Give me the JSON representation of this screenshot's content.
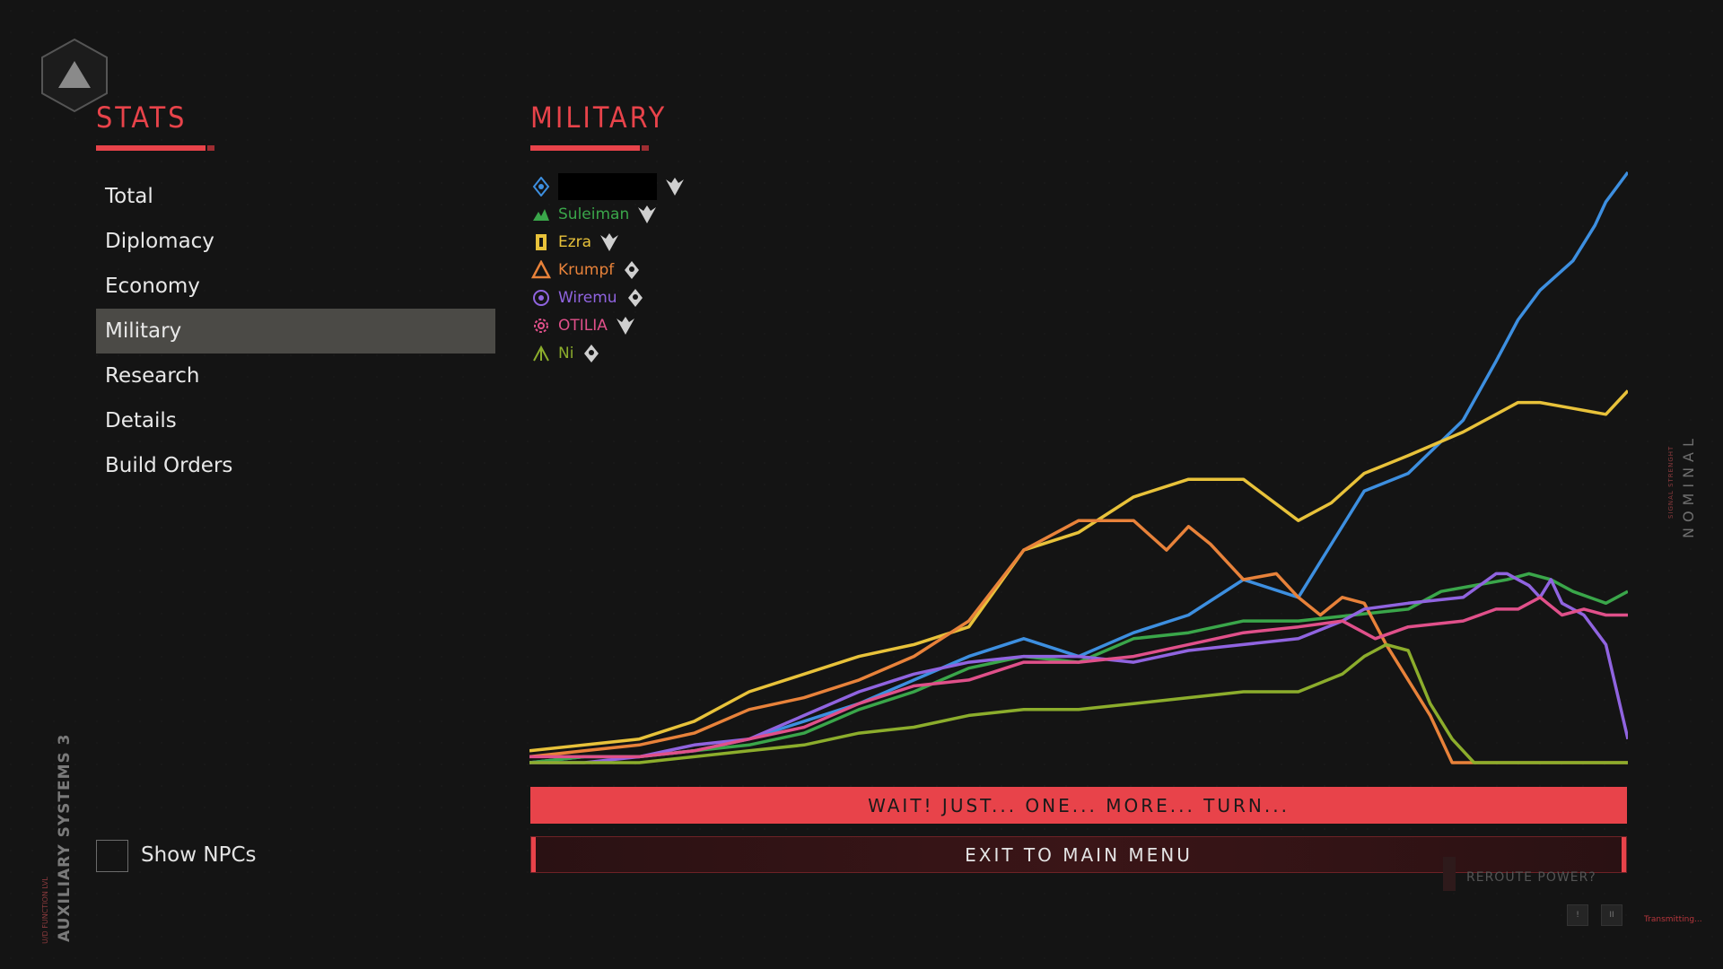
{
  "stats_heading": "STATS",
  "military_heading": "MILITARY",
  "menu": [
    {
      "label": "Total",
      "active": false
    },
    {
      "label": "Diplomacy",
      "active": false
    },
    {
      "label": "Economy",
      "active": false
    },
    {
      "label": "Military",
      "active": true
    },
    {
      "label": "Research",
      "active": false
    },
    {
      "label": "Details",
      "active": false
    },
    {
      "label": "Build Orders",
      "active": false
    }
  ],
  "show_npcs_label": "Show NPCs",
  "show_npcs_checked": false,
  "side_title": "AUXILIARY SYSTEMS 3",
  "side_sub": "U/D FUNCTION LVL",
  "nominal": "NOMINAL",
  "signal_strength": "SIGNAL STRENGHT",
  "legend": [
    {
      "name": "",
      "color": "#3d8fe0",
      "emblem": "diamond-emblem-icon",
      "rank": "wings",
      "redacted": true
    },
    {
      "name": "Suleiman",
      "color": "#3aa64a",
      "emblem": "peaks-emblem-icon",
      "rank": "wings",
      "redacted": false
    },
    {
      "name": "Ezra",
      "color": "#e8c23a",
      "emblem": "tower-emblem-icon",
      "rank": "wings",
      "redacted": false
    },
    {
      "name": "Krumpf",
      "color": "#e8823a",
      "emblem": "triangle-emblem-icon",
      "rank": "shield",
      "redacted": false
    },
    {
      "name": "Wiremu",
      "color": "#9064e0",
      "emblem": "spiral-emblem-icon",
      "rank": "shield",
      "redacted": false
    },
    {
      "name": "OTILIA",
      "color": "#e0508a",
      "emblem": "gear-emblem-icon",
      "rank": "wings",
      "redacted": false
    },
    {
      "name": "Ni",
      "color": "#8cad2c",
      "emblem": "fork-emblem-icon",
      "rank": "shield",
      "redacted": false
    }
  ],
  "chart_data": {
    "type": "line",
    "ylim": [
      0,
      100
    ],
    "xlim": [
      0,
      100
    ],
    "series": [
      {
        "name": "",
        "color": "#3d8fe0",
        "x": [
          0,
          5,
          10,
          15,
          20,
          25,
          30,
          35,
          40,
          45,
          50,
          55,
          60,
          65,
          70,
          73,
          76,
          80,
          85,
          88,
          90,
          92,
          95,
          97,
          98,
          100
        ],
        "y": [
          0,
          1,
          1,
          2,
          4,
          7,
          10,
          14,
          18,
          21,
          18,
          22,
          25,
          31,
          28,
          37,
          46,
          49,
          58,
          68,
          75,
          80,
          85,
          91,
          95,
          100
        ]
      },
      {
        "name": "Suleiman",
        "color": "#3aa64a",
        "x": [
          0,
          5,
          10,
          15,
          20,
          25,
          30,
          35,
          40,
          45,
          50,
          55,
          60,
          65,
          70,
          75,
          80,
          83,
          86,
          89,
          91,
          93,
          95,
          98,
          100
        ],
        "y": [
          0,
          1,
          1,
          2,
          3,
          5,
          9,
          12,
          16,
          18,
          17,
          21,
          22,
          24,
          24,
          25,
          26,
          29,
          30,
          31,
          32,
          31,
          29,
          27,
          29
        ]
      },
      {
        "name": "Ezra",
        "color": "#e8c23a",
        "x": [
          0,
          5,
          10,
          15,
          20,
          25,
          30,
          35,
          40,
          45,
          50,
          55,
          60,
          65,
          70,
          73,
          76,
          80,
          85,
          88,
          90,
          92,
          95,
          98,
          100
        ],
        "y": [
          2,
          3,
          4,
          7,
          12,
          15,
          18,
          20,
          23,
          36,
          39,
          45,
          48,
          48,
          41,
          44,
          49,
          52,
          56,
          59,
          61,
          61,
          60,
          59,
          63
        ]
      },
      {
        "name": "Krumpf",
        "color": "#e8823a",
        "x": [
          0,
          5,
          10,
          15,
          20,
          25,
          30,
          35,
          40,
          45,
          50,
          55,
          58,
          60,
          62,
          65,
          68,
          70,
          72,
          74,
          76,
          78,
          80,
          82,
          84,
          86,
          88,
          90,
          92,
          95,
          98,
          100
        ],
        "y": [
          1,
          2,
          3,
          5,
          9,
          11,
          14,
          18,
          24,
          36,
          41,
          41,
          36,
          40,
          37,
          31,
          32,
          28,
          25,
          28,
          27,
          20,
          14,
          8,
          0,
          0,
          0,
          0,
          0,
          0,
          0,
          0
        ]
      },
      {
        "name": "Wiremu",
        "color": "#9064e0",
        "x": [
          0,
          5,
          10,
          15,
          20,
          25,
          30,
          35,
          40,
          45,
          50,
          55,
          60,
          65,
          70,
          74,
          76,
          80,
          85,
          88,
          89,
          91,
          92,
          93,
          94,
          96,
          98,
          100
        ],
        "y": [
          0,
          0,
          1,
          3,
          4,
          8,
          12,
          15,
          17,
          18,
          18,
          17,
          19,
          20,
          21,
          24,
          26,
          27,
          28,
          32,
          32,
          30,
          28,
          31,
          27,
          25,
          20,
          4
        ]
      },
      {
        "name": "OTILIA",
        "color": "#e0508a",
        "x": [
          0,
          5,
          10,
          15,
          20,
          25,
          30,
          35,
          40,
          45,
          50,
          55,
          60,
          65,
          70,
          74,
          77,
          80,
          85,
          88,
          90,
          92,
          94,
          96,
          98,
          100
        ],
        "y": [
          1,
          1,
          1,
          2,
          4,
          6,
          10,
          13,
          14,
          17,
          17,
          18,
          20,
          22,
          23,
          24,
          21,
          23,
          24,
          26,
          26,
          28,
          25,
          26,
          25,
          25
        ]
      },
      {
        "name": "Ni",
        "color": "#8cad2c",
        "x": [
          0,
          5,
          10,
          15,
          20,
          25,
          30,
          35,
          40,
          45,
          50,
          55,
          60,
          65,
          70,
          74,
          76,
          78,
          80,
          82,
          84,
          86,
          88,
          90,
          95,
          100
        ],
        "y": [
          0,
          0,
          0,
          1,
          2,
          3,
          5,
          6,
          8,
          9,
          9,
          10,
          11,
          12,
          12,
          15,
          18,
          20,
          19,
          10,
          4,
          0,
          0,
          0,
          0,
          0
        ]
      }
    ]
  },
  "wait_button": "WAIT! JUST... ONE... MORE... TURN...",
  "exit_button": "EXIT TO MAIN MENU",
  "reroute_label": "REROUTE POWER?",
  "transmitting": "Transmitting...",
  "tiny_box_1": "!",
  "tiny_box_2": "II"
}
